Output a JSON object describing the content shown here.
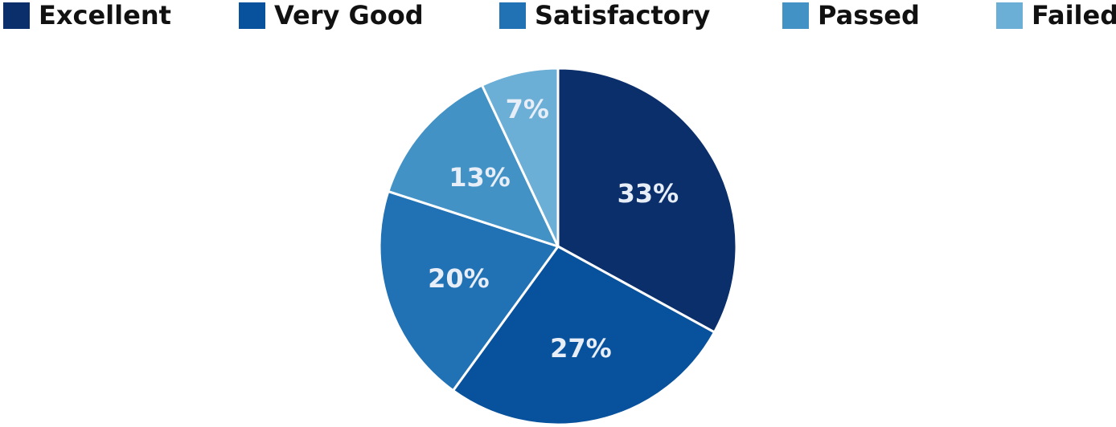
{
  "chart_data": {
    "type": "pie",
    "categories": [
      "Excellent",
      "Very Good",
      "Satisfactory",
      "Passed",
      "Failed"
    ],
    "values": [
      33,
      27,
      20,
      13,
      7
    ],
    "data_labels": [
      "33%",
      "27%",
      "20%",
      "13%",
      "7%"
    ],
    "colors": [
      "#0b2f6b",
      "#08519c",
      "#2171b5",
      "#4292c6",
      "#6baed6"
    ],
    "legend_position": "top",
    "start_angle": "12 o'clock",
    "direction": "clockwise",
    "title": ""
  }
}
